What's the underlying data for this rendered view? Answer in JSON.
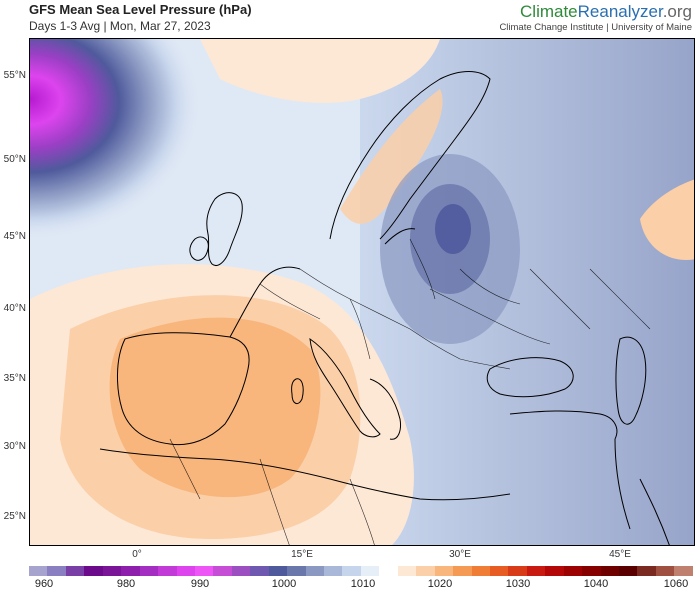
{
  "header": {
    "title": "GFS Mean Sea Level Pressure (hPa)",
    "subtitle": "Days 1-3 Avg | Mon, Mar 27, 2023"
  },
  "brand": {
    "part1": "Climate",
    "part2": "Reanalyzer",
    "part3": ".org",
    "sub": "Climate Change Institute | University of Maine"
  },
  "axes": {
    "lat_labels": [
      "55°N",
      "50°N",
      "45°N",
      "40°N",
      "35°N",
      "30°N",
      "25°N"
    ],
    "lon_labels": [
      "0°",
      "15°E",
      "30°E",
      "45°E"
    ]
  },
  "colorbar": {
    "labels": [
      "960",
      "980",
      "990",
      "1000",
      "1010",
      "1020",
      "1030",
      "1040",
      "1060"
    ],
    "colors": [
      "#a7a3cf",
      "#8a7fc0",
      "#7a3fa6",
      "#6b0b8c",
      "#7a1598",
      "#8e1fac",
      "#a52ec2",
      "#c23ad8",
      "#dd44ee",
      "#ee55f7",
      "#c64dd6",
      "#9b4fc1",
      "#6e58b0",
      "#4f5a9c",
      "#6a77ab",
      "#8a98c2",
      "#a9b8d9",
      "#c7d5ec",
      "#e6eef8",
      "#ffffff",
      "#fde8d6",
      "#fbcfa8",
      "#f8b57c",
      "#f59a55",
      "#f07d35",
      "#e65c22",
      "#d83b18",
      "#c81a10",
      "#b40808",
      "#9c0202",
      "#860000",
      "#6e0000",
      "#5a0000",
      "#7a2a20",
      "#a05040",
      "#c08070"
    ]
  }
}
